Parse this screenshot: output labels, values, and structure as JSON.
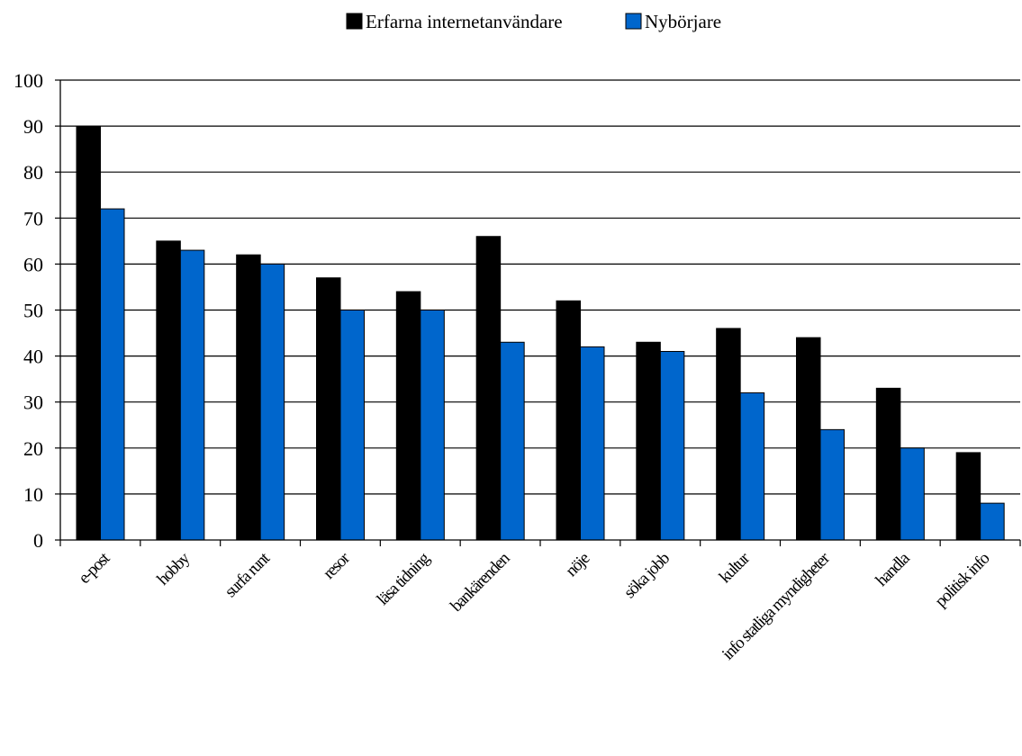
{
  "chart_data": {
    "type": "bar",
    "categories": [
      "e-post",
      "hobby",
      "surfa runt",
      "resor",
      "läsa tidning",
      "bankärenden",
      "nöje",
      "söka jobb",
      "kultur",
      "info statliga myndigheter",
      "handla",
      "politisk info"
    ],
    "series": [
      {
        "name": "Erfarna internetanvändare",
        "color": "#000000",
        "values": [
          90,
          65,
          62,
          57,
          54,
          66,
          52,
          43,
          46,
          44,
          33,
          19
        ]
      },
      {
        "name": "Nybörjare",
        "color": "#0066cc",
        "values": [
          72,
          63,
          60,
          50,
          50,
          43,
          42,
          41,
          32,
          24,
          20,
          8
        ]
      }
    ],
    "yticks": [
      "0",
      "10",
      "20",
      "30",
      "40",
      "50",
      "60",
      "70",
      "80",
      "90",
      "100"
    ],
    "ylim": [
      0,
      100
    ],
    "grid": true,
    "legend_position": "top-center",
    "title": "",
    "xlabel": "",
    "ylabel": ""
  }
}
